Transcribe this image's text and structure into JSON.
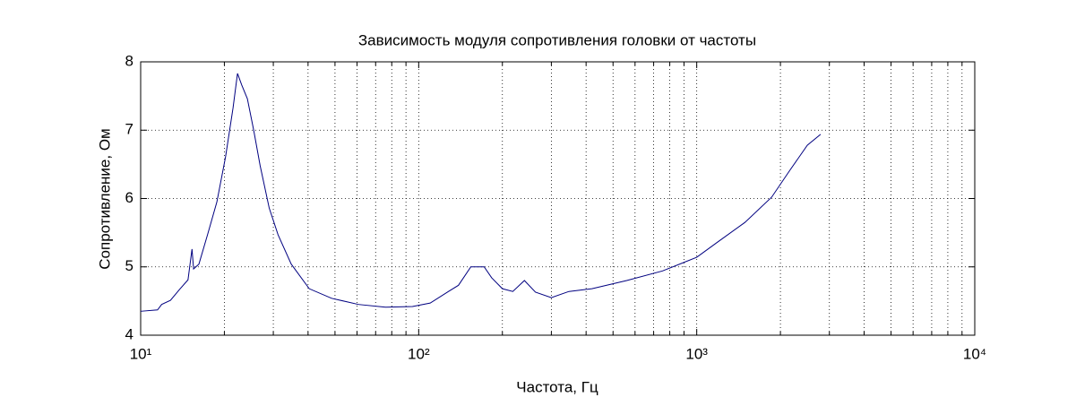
{
  "chart_data": {
    "type": "line",
    "title": "Зависимость модуля сопротивления головки от частоты",
    "x_label": "Частота, Гц",
    "y_label": "Сопротивление, Ом",
    "x_scale": "log",
    "grid": true,
    "x": [
      10,
      11.5,
      11.9,
      12.8,
      13.8,
      14.8,
      15.3,
      15.5,
      16.2,
      17.4,
      18.8,
      20.2,
      21.5,
      22.3,
      23.1,
      24.2,
      25.5,
      26.9,
      29,
      31.2,
      34.8,
      40.4,
      48.6,
      60.7,
      76,
      95,
      110,
      128,
      139,
      154,
      172,
      183,
      200,
      218,
      240,
      263,
      300,
      347,
      420,
      560,
      753,
      1000,
      1186,
      1490,
      1860,
      2160,
      2500,
      2790
    ],
    "series": [
      {
        "name": "Сопротивление",
        "color": "#000080",
        "values": [
          4.35,
          4.37,
          4.45,
          4.51,
          4.67,
          4.81,
          5.26,
          4.97,
          5.04,
          5.47,
          5.95,
          6.61,
          7.33,
          7.83,
          7.66,
          7.46,
          7.0,
          6.48,
          5.86,
          5.47,
          5.04,
          4.68,
          4.54,
          4.45,
          4.41,
          4.42,
          4.47,
          4.64,
          4.73,
          5.0,
          5.0,
          4.84,
          4.68,
          4.64,
          4.8,
          4.63,
          4.55,
          4.64,
          4.68,
          4.8,
          4.94,
          5.14,
          5.36,
          5.65,
          6.02,
          6.41,
          6.78,
          6.94
        ]
      }
    ],
    "xlim": [
      10,
      10000
    ],
    "xticks": [
      {
        "value": 10,
        "label": "10¹"
      },
      {
        "value": 100,
        "label": "10²"
      },
      {
        "value": 1000,
        "label": "10³"
      },
      {
        "value": 10000,
        "label": "10⁴"
      }
    ],
    "ylim": [
      4,
      8
    ],
    "yticks": [
      4,
      5,
      6,
      7,
      8
    ]
  }
}
